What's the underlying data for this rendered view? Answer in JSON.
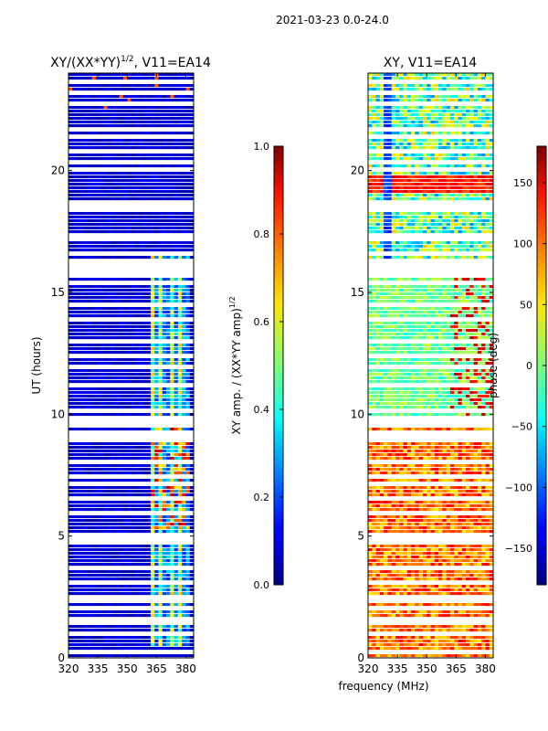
{
  "figure_title": "2021-03-23 0.0-24.0",
  "shared_xlabel": "frequency (MHz)",
  "chart_data": [
    {
      "type": "heatmap",
      "title_main": "XY/(XX*YY)",
      "title_sup": "1/2",
      "title_rest": ", V11=EA14",
      "ylabel": "UT (hours)",
      "xlim": [
        320,
        384
      ],
      "ylim": [
        0,
        24
      ],
      "x_ticks": [
        320,
        335,
        350,
        365,
        380
      ],
      "y_ticks": [
        0,
        5,
        10,
        15,
        20
      ],
      "colorbar": {
        "label_main": "XY amp. / (XX*YY amp)",
        "label_sup": "1/2",
        "range": [
          0.0,
          1.0
        ],
        "ticks": [
          "0.0",
          "0.2",
          "0.4",
          "0.6",
          "0.8",
          "1.0"
        ],
        "tick_values": [
          0.0,
          0.2,
          0.4,
          0.6,
          0.8,
          1.0
        ],
        "colormap": "jet"
      },
      "description": "mostly near 0 across band; elevated values (0.4-0.9) in 362-382 MHz during 1-16 UT"
    },
    {
      "type": "heatmap",
      "title": "XY, V11=EA14",
      "xlim": [
        320,
        384
      ],
      "ylim": [
        0,
        24
      ],
      "x_ticks": [
        320,
        335,
        350,
        365,
        380
      ],
      "y_ticks": [
        0,
        5,
        10,
        15,
        20
      ],
      "colorbar": {
        "label": "phase (deg)",
        "range": [
          -180,
          180
        ],
        "ticks": [
          "−150",
          "−100",
          "−50",
          "0",
          "50",
          "100",
          "150"
        ],
        "tick_values": [
          -150,
          -100,
          -50,
          0,
          50,
          100,
          150
        ],
        "colormap": "jet"
      },
      "description": "phase mostly positive (red) during 0-9.5 UT, near 0 (cyan/green) 9.5-16 UT, mixed 16-24 UT"
    }
  ]
}
